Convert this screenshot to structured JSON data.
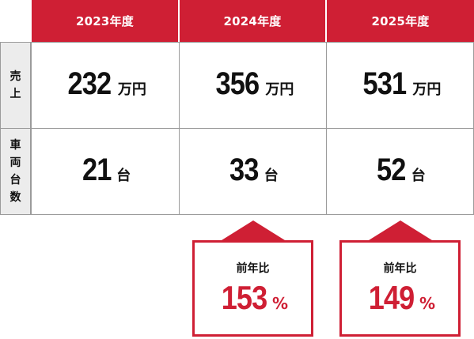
{
  "colors": {
    "accent": "#cf1f34",
    "row_header_bg": "#ececec",
    "border": "#9b9b9b",
    "text": "#111111"
  },
  "table": {
    "years": [
      "2023年度",
      "2024年度",
      "2025年度"
    ],
    "rows": [
      {
        "label": [
          "売",
          "上"
        ],
        "values": [
          "232",
          "356",
          "531"
        ],
        "unit": "万円"
      },
      {
        "label": [
          "車",
          "両",
          "台",
          "数"
        ],
        "values": [
          "21",
          "33",
          "52"
        ],
        "unit": "台"
      }
    ]
  },
  "callouts": [
    {
      "label": "前年比",
      "value": "153",
      "unit": "%"
    },
    {
      "label": "前年比",
      "value": "149",
      "unit": "%"
    }
  ]
}
